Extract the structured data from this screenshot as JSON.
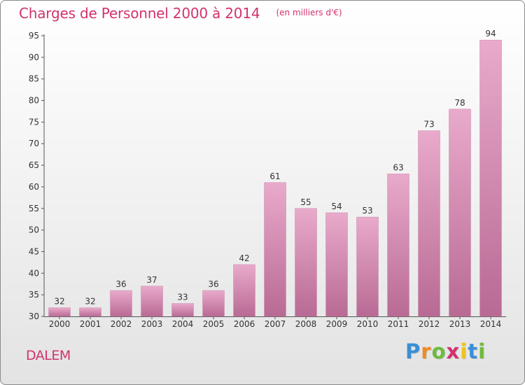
{
  "header": {
    "title": "Charges de Personnel 2000 à 2014",
    "subtitle": "(en milliers d'€)"
  },
  "footer": {
    "commune": "DALEM",
    "logo": {
      "letters": [
        "P",
        "r",
        "o",
        "x",
        "i",
        "t",
        "i"
      ],
      "colors": [
        "#3a8fd6",
        "#f08a24",
        "#6dbb3c",
        "#d2326e",
        "#f0c419",
        "#3a8fd6",
        "#6dbb3c"
      ]
    }
  },
  "colors": {
    "bar_light": "#e9aacb",
    "bar_dark": "#b86a94",
    "text": "#333333",
    "title": "#d2326e",
    "grid": "#cccccc"
  },
  "chart_data": {
    "type": "bar",
    "categories": [
      "2000",
      "2001",
      "2002",
      "2003",
      "2004",
      "2005",
      "2006",
      "2007",
      "2008",
      "2009",
      "2010",
      "2011",
      "2012",
      "2013",
      "2014"
    ],
    "values": [
      32,
      32,
      36,
      37,
      33,
      36,
      42,
      61,
      55,
      54,
      53,
      63,
      73,
      78,
      94
    ],
    "ylim": [
      30,
      95
    ],
    "yticks": [
      30,
      35,
      40,
      45,
      50,
      55,
      60,
      65,
      70,
      75,
      80,
      85,
      90,
      95
    ],
    "grid": false
  }
}
